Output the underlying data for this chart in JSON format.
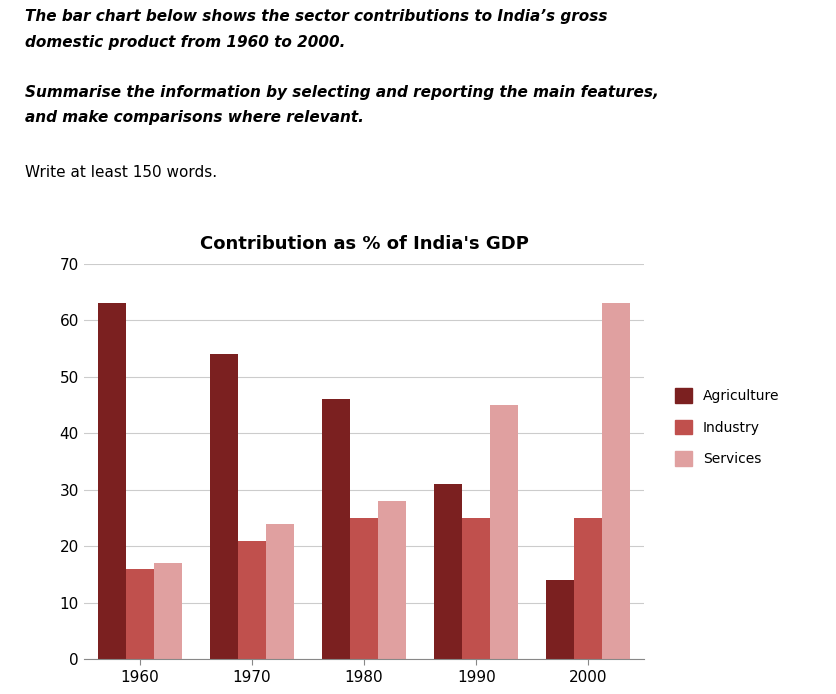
{
  "title": "Contribution as % of India's GDP",
  "years": [
    1960,
    1970,
    1980,
    1990,
    2000
  ],
  "agriculture": [
    63,
    54,
    46,
    31,
    14
  ],
  "industry": [
    16,
    21,
    25,
    25,
    25
  ],
  "services": [
    17,
    24,
    28,
    45,
    63
  ],
  "agriculture_color": "#7B2020",
  "industry_color": "#C0504D",
  "services_color": "#E0A0A0",
  "ylim": [
    0,
    70
  ],
  "yticks": [
    0,
    10,
    20,
    30,
    40,
    50,
    60,
    70
  ],
  "bar_width": 0.25,
  "text_intro_line1": "The bar chart below shows the sector contributions to India’s gross",
  "text_intro_line2": "domestic product from 1960 to 2000.",
  "text_summarise_line1": "Summarise the information by selecting and reporting the main features,",
  "text_summarise_line2": "and make comparisons where relevant.",
  "text_write": "Write at least 150 words.",
  "legend_labels": [
    "Agriculture",
    "Industry",
    "Services"
  ],
  "background_color": "#FFFFFF"
}
